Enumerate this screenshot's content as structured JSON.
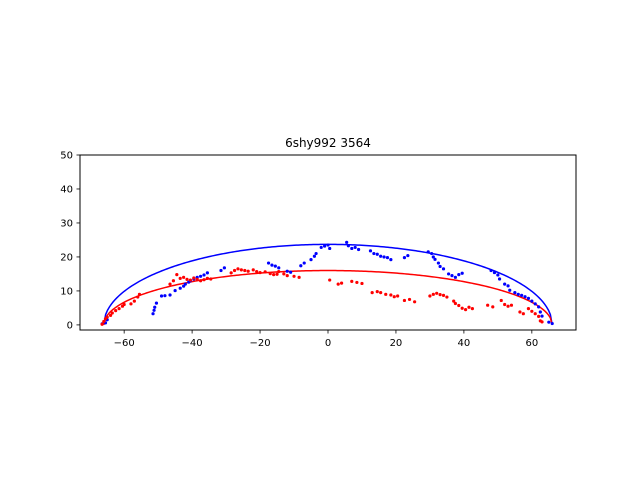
{
  "chart_data": {
    "type": "scatter",
    "title": "6shy992 3564",
    "xlabel": "",
    "ylabel": "",
    "xlim": [
      -73,
      73
    ],
    "ylim": [
      -1.5,
      50
    ],
    "xticks": [
      -60,
      -40,
      -20,
      0,
      20,
      40,
      60
    ],
    "yticks": [
      0,
      10,
      20,
      30,
      40,
      50
    ],
    "xtick_labels": [
      "−60",
      "−40",
      "−20",
      "0",
      "20",
      "40",
      "60"
    ],
    "ytick_labels": [
      "0",
      "10",
      "20",
      "30",
      "40",
      "50"
    ],
    "grid": false,
    "colors": {
      "blue": "#0000ff",
      "red": "#ff0000"
    },
    "curves": [
      {
        "color": "#0000ff",
        "shape": "half-ellipse",
        "x_range": [
          -66,
          66
        ],
        "peak": 23.7
      },
      {
        "color": "#ff0000",
        "shape": "half-ellipse",
        "x_range": [
          -66,
          66
        ],
        "peak": 16.0
      }
    ],
    "series": [
      {
        "color": "#0000ff",
        "points": [
          [
            -66.5,
            0.3
          ],
          [
            -65.5,
            0.6
          ],
          [
            -65,
            1.5
          ],
          [
            -51.5,
            3.3
          ],
          [
            -51.2,
            4.3
          ],
          [
            -51,
            5.2
          ],
          [
            -50.5,
            6.4
          ],
          [
            -49,
            8.5
          ],
          [
            -48,
            8.6
          ],
          [
            -46.5,
            8.8
          ],
          [
            -45,
            10.1
          ],
          [
            -43.5,
            10.8
          ],
          [
            -42.5,
            11.4
          ],
          [
            -42,
            12.0
          ],
          [
            -41,
            12.6
          ],
          [
            -40.5,
            13.0
          ],
          [
            -39.5,
            13.5
          ],
          [
            -38.5,
            14.0
          ],
          [
            -37.5,
            14.3
          ],
          [
            -36.5,
            14.7
          ],
          [
            -35.5,
            15.3
          ],
          [
            -31.5,
            16.0
          ],
          [
            -30.5,
            16.8
          ],
          [
            -17.5,
            18.2
          ],
          [
            -16.5,
            17.6
          ],
          [
            -15.5,
            17.3
          ],
          [
            -14.5,
            16.8
          ],
          [
            -12,
            15.8
          ],
          [
            -11,
            15.5
          ],
          [
            -8,
            17.4
          ],
          [
            -7,
            18.2
          ],
          [
            -5,
            19.2
          ],
          [
            -4,
            20.2
          ],
          [
            -3.5,
            21.0
          ],
          [
            -2,
            22.8
          ],
          [
            -1,
            23.2
          ],
          [
            0,
            23.5
          ],
          [
            0.5,
            22.5
          ],
          [
            5.5,
            24.3
          ],
          [
            6,
            23.3
          ],
          [
            7,
            22.5
          ],
          [
            8,
            22.8
          ],
          [
            9,
            22.2
          ],
          [
            12.5,
            21.8
          ],
          [
            13.5,
            21.0
          ],
          [
            14.5,
            20.8
          ],
          [
            15.5,
            20.2
          ],
          [
            16.5,
            20.0
          ],
          [
            17.5,
            19.8
          ],
          [
            18.5,
            19.2
          ],
          [
            22.5,
            19.8
          ],
          [
            23.5,
            20.4
          ],
          [
            29.5,
            21.5
          ],
          [
            30.5,
            21.0
          ],
          [
            31,
            20.0
          ],
          [
            31.5,
            19.3
          ],
          [
            32.5,
            18.2
          ],
          [
            33,
            17.2
          ],
          [
            34,
            16.5
          ],
          [
            35.5,
            15.0
          ],
          [
            36.5,
            14.5
          ],
          [
            37.5,
            14.0
          ],
          [
            38.5,
            14.8
          ],
          [
            39.5,
            15.2
          ],
          [
            48,
            16.0
          ],
          [
            49,
            15.4
          ],
          [
            50,
            14.7
          ],
          [
            50.5,
            13.5
          ],
          [
            52,
            12.0
          ],
          [
            53,
            11.5
          ],
          [
            53.5,
            10.2
          ],
          [
            55,
            9.5
          ],
          [
            56,
            9.0
          ],
          [
            57,
            8.7
          ],
          [
            58,
            8.3
          ],
          [
            59,
            7.8
          ],
          [
            60,
            7.0
          ],
          [
            61,
            6.2
          ],
          [
            62,
            5.3
          ],
          [
            62.5,
            3.8
          ],
          [
            63,
            2.6
          ],
          [
            65,
            0.8
          ],
          [
            66,
            0.4
          ]
        ]
      },
      {
        "color": "#ff0000",
        "points": [
          [
            -66.5,
            0.2
          ],
          [
            -66,
            1.0
          ],
          [
            -65.5,
            1.8
          ],
          [
            -65,
            2.3
          ],
          [
            -64,
            2.8
          ],
          [
            -63.5,
            3.5
          ],
          [
            -62.5,
            4.2
          ],
          [
            -61.5,
            4.8
          ],
          [
            -60.5,
            5.5
          ],
          [
            -60,
            6.0
          ],
          [
            -58,
            6.2
          ],
          [
            -57,
            7.0
          ],
          [
            -56,
            8.2
          ],
          [
            -55.5,
            9.0
          ],
          [
            -46.5,
            12.0
          ],
          [
            -45.5,
            13.0
          ],
          [
            -44.5,
            14.8
          ],
          [
            -43.5,
            13.7
          ],
          [
            -42.5,
            14.0
          ],
          [
            -41.5,
            13.4
          ],
          [
            -40.5,
            13.2
          ],
          [
            -39.5,
            13.8
          ],
          [
            -38.5,
            13.4
          ],
          [
            -37.5,
            13.0
          ],
          [
            -36.5,
            13.3
          ],
          [
            -35.5,
            13.7
          ],
          [
            -34.5,
            13.5
          ],
          [
            -28.5,
            15.3
          ],
          [
            -27.5,
            16.0
          ],
          [
            -26.5,
            16.5
          ],
          [
            -25.5,
            16.2
          ],
          [
            -24.5,
            16.0
          ],
          [
            -23.5,
            15.8
          ],
          [
            -22,
            16.2
          ],
          [
            -21,
            15.7
          ],
          [
            -20,
            15.4
          ],
          [
            -18.5,
            15.6
          ],
          [
            -17,
            15.1
          ],
          [
            -16,
            14.8
          ],
          [
            -15,
            14.9
          ],
          [
            -14.5,
            15.7
          ],
          [
            -13,
            15.0
          ],
          [
            -12,
            14.5
          ],
          [
            -10,
            14.3
          ],
          [
            -8.5,
            14.0
          ],
          [
            0.5,
            13.2
          ],
          [
            3,
            12.0
          ],
          [
            4,
            12.3
          ],
          [
            7,
            12.8
          ],
          [
            8.5,
            12.5
          ],
          [
            10,
            12.2
          ],
          [
            13,
            9.5
          ],
          [
            14.5,
            9.8
          ],
          [
            15.5,
            9.5
          ],
          [
            17,
            9.0
          ],
          [
            18.5,
            8.8
          ],
          [
            19.5,
            8.3
          ],
          [
            20.5,
            8.5
          ],
          [
            22.5,
            7.2
          ],
          [
            24,
            7.5
          ],
          [
            25.5,
            6.8
          ],
          [
            30,
            8.5
          ],
          [
            31,
            9.0
          ],
          [
            32,
            9.3
          ],
          [
            33,
            8.9
          ],
          [
            34,
            8.7
          ],
          [
            35,
            8.2
          ],
          [
            37,
            7.0
          ],
          [
            37.5,
            6.3
          ],
          [
            38.5,
            5.7
          ],
          [
            39.5,
            4.9
          ],
          [
            40.5,
            4.5
          ],
          [
            41.5,
            5.2
          ],
          [
            42.5,
            4.8
          ],
          [
            47,
            5.8
          ],
          [
            48.5,
            5.3
          ],
          [
            51,
            7.2
          ],
          [
            52,
            6.0
          ],
          [
            53,
            5.5
          ],
          [
            54,
            5.8
          ],
          [
            56.5,
            3.8
          ],
          [
            57.5,
            3.3
          ],
          [
            59,
            4.8
          ],
          [
            60,
            4.0
          ],
          [
            61,
            3.3
          ],
          [
            62,
            2.5
          ],
          [
            62.5,
            1.2
          ],
          [
            63,
            0.9
          ]
        ]
      }
    ]
  }
}
